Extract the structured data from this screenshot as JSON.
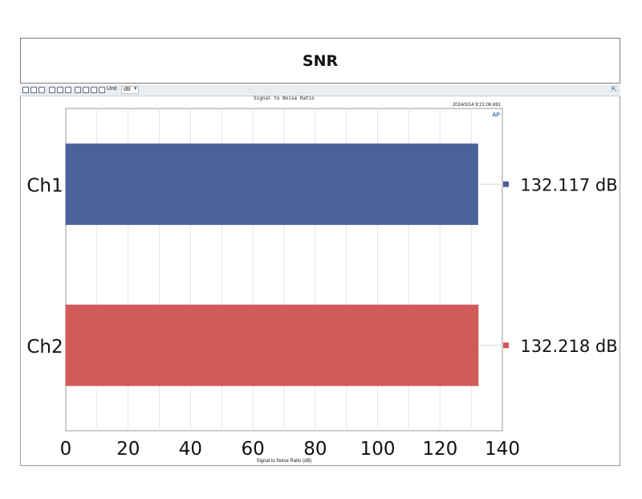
{
  "header": {
    "title": "SNR"
  },
  "toolbar": {
    "unit_label": "Unit",
    "unit_value": "dB"
  },
  "chart_data": {
    "type": "bar",
    "orientation": "horizontal",
    "title": "Signal to Noise Ratio",
    "timestamp": "2024/3/14 9:21:06.691",
    "xlabel": "Signal to Noise Ratio (dB)",
    "categories": [
      "Ch1",
      "Ch2"
    ],
    "values": [
      132.117,
      132.218
    ],
    "value_labels": [
      "132.117 dB",
      "132.218 dB"
    ],
    "colors": [
      "#4a6199",
      "#d05a57"
    ],
    "xlim": [
      0,
      140
    ],
    "xticks": [
      0,
      20,
      40,
      60,
      80,
      100,
      120,
      140
    ],
    "grid": true,
    "legend": "right",
    "badge": "AP"
  }
}
